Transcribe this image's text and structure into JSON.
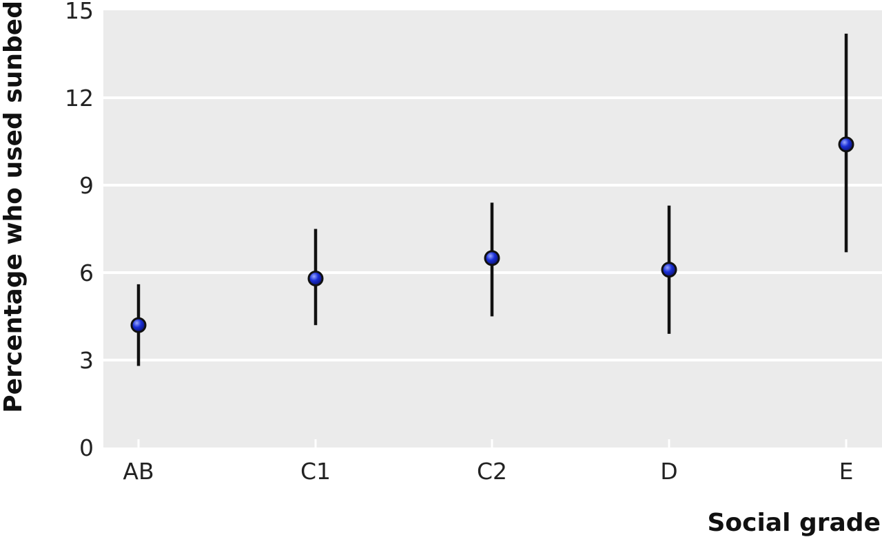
{
  "chart_data": {
    "type": "scatter",
    "title": "",
    "xlabel": "Social grade",
    "ylabel": "Percentage who used sunbed",
    "categories": [
      "AB",
      "C1",
      "C2",
      "D",
      "E"
    ],
    "series": [
      {
        "values": [
          4.2,
          5.8,
          6.5,
          6.1,
          10.4
        ],
        "ci_lower": [
          2.8,
          4.2,
          4.5,
          3.9,
          6.7
        ],
        "ci_upper": [
          5.6,
          7.5,
          8.4,
          8.3,
          14.2
        ]
      }
    ],
    "ylim": [
      0,
      15
    ],
    "yticks": [
      "0",
      "3",
      "6",
      "9",
      "12",
      "15"
    ],
    "grid": true,
    "error_bars": "confidence interval",
    "marker_color": "#1a2fd6",
    "background_color": "#ebebeb"
  }
}
